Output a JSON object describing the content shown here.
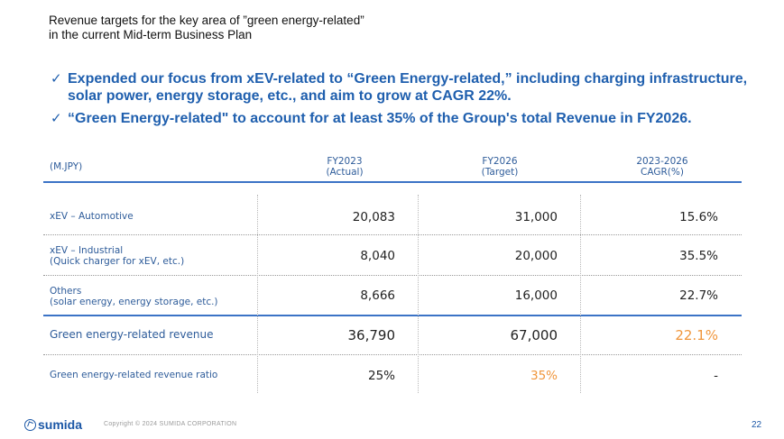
{
  "title": {
    "line1": "Revenue targets for the key area of ”green energy-related”",
    "line2": "in the current Mid-term Business Plan"
  },
  "bullets": [
    {
      "check": "✓",
      "text": "Expended our focus from xEV-related to “Green Energy-related,” including charging infrastructure, solar power, energy storage, etc., and aim to grow at CAGR 22%."
    },
    {
      "check": "✓",
      "text": "“Green Energy-related\" to account for at least 35% of the Group's total Revenue in FY2026."
    }
  ],
  "table": {
    "unit": "(M.JPY)",
    "columns": [
      {
        "line1": "FY2023",
        "line2": "(Actual)"
      },
      {
        "line1": "FY2026",
        "line2": "(Target)"
      },
      {
        "line1": "2023-2026",
        "line2": "CAGR(%)"
      }
    ],
    "rows": [
      {
        "label1": "xEV – Automotive",
        "label2": "",
        "fy2023": "20,083",
        "fy2026": "31,000",
        "cagr": "15.6%"
      },
      {
        "label1": "xEV – Industrial",
        "label2": "(Quick charger for xEV, etc.)",
        "fy2023": "8,040",
        "fy2026": "20,000",
        "cagr": "35.5%"
      },
      {
        "label1": "Others",
        "label2": "(solar energy, energy storage, etc.)",
        "fy2023": "8,666",
        "fy2026": "16,000",
        "cagr": "22.7%"
      }
    ],
    "total": {
      "label": "Green energy-related revenue",
      "fy2023": "36,790",
      "fy2026": "67,000",
      "cagr": "22.1%"
    },
    "ratio": {
      "label": "Green energy-related revenue ratio",
      "fy2023": "25%",
      "fy2026": "35%",
      "cagr": "-"
    }
  },
  "footer": {
    "logo_icon": "sumida-logo-icon",
    "logo_text": "sumida",
    "copyright": "Copyright © 2024 SUMIDA CORPORATION",
    "page_number": "22"
  },
  "colors": {
    "accent_blue": "#1f5fae",
    "rule_blue": "#3b73c6",
    "highlight_orange": "#f0963c"
  }
}
